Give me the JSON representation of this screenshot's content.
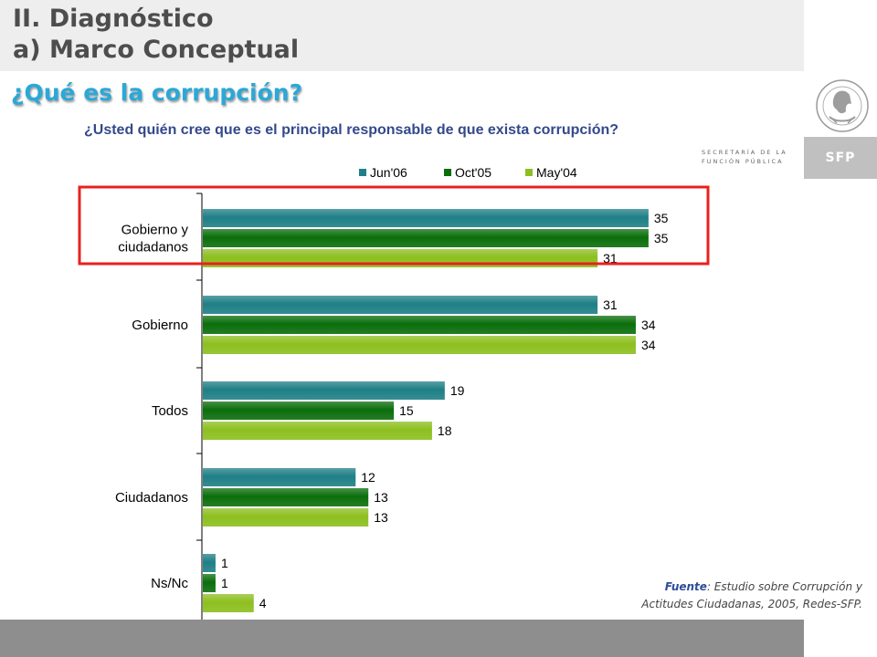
{
  "header": {
    "title_line1": "II. Diagnóstico",
    "title_line2": "a) Marco Conceptual"
  },
  "subtitle": "¿Qué es la corrupción?",
  "question": "¿Usted quién cree que es el principal responsable de que exista corrupción?",
  "logo": {
    "secretaria_line1": "SECRETARÍA DE LA",
    "secretaria_line2": "FUNCIÓN PÚBLICA",
    "badge": "SFP"
  },
  "source": {
    "label": "Fuente",
    "text_line1": ": Estudio sobre Corrupción y",
    "text_line2": "Actitudes Ciudadanas, 2005, Redes-SFP."
  },
  "chart_data": {
    "type": "bar",
    "orientation": "horizontal",
    "categories": [
      [
        "Gobierno y",
        "ciudadanos"
      ],
      [
        "Gobierno"
      ],
      [
        "Todos"
      ],
      [
        "Ciudadanos"
      ],
      [
        "Ns/Nc"
      ]
    ],
    "series": [
      {
        "name": "Jun'06",
        "color": "#1f7f86",
        "values": [
          35,
          31,
          19,
          12,
          1
        ]
      },
      {
        "name": "Oct'05",
        "color": "#0b6e0b",
        "values": [
          35,
          34,
          15,
          13,
          1
        ]
      },
      {
        "name": "May'04",
        "color": "#8cbf1f",
        "values": [
          31,
          34,
          18,
          13,
          4
        ]
      }
    ],
    "xlim": [
      0,
      40
    ],
    "legend": "top",
    "grid": false,
    "highlight": {
      "category_index": 0,
      "color": "#e8211e"
    }
  }
}
